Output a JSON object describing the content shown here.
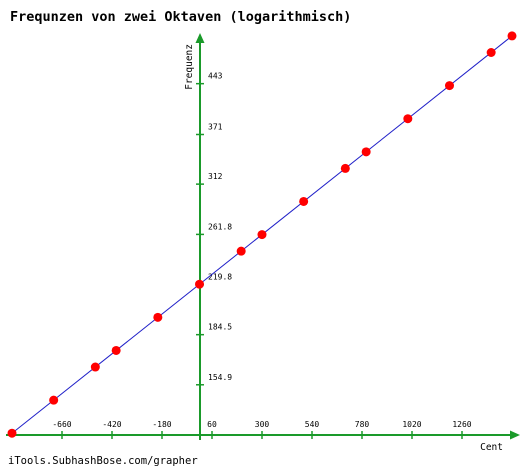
{
  "title": "Frequnzen von zwei Oktaven (logarithmisch)",
  "credit": "iTools.SubhashBose.com/grapher",
  "chart_data": {
    "type": "scatter",
    "title": "Frequnzen von zwei Oktaven (logarithmisch)",
    "xlabel": "Cent",
    "ylabel": "Frequenz",
    "x_tick_labels": [
      "-660",
      "-420",
      "-180",
      "60",
      "300",
      "540",
      "780",
      "1020",
      "1260"
    ],
    "y_tick_labels": [
      "154.9",
      "184.5",
      "219.8",
      "261.8",
      "312",
      "371",
      "443"
    ],
    "xlim": [
      -900,
      1500
    ],
    "ylim": [
      130,
      525
    ],
    "line": {
      "from": [
        -900,
        130.8
      ],
      "to": [
        1500,
        523.3
      ]
    },
    "points": [
      {
        "x": -900,
        "y": 130.8
      },
      {
        "x": -700,
        "y": 146.8
      },
      {
        "x": -500,
        "y": 164.8
      },
      {
        "x": -400,
        "y": 174.6
      },
      {
        "x": -200,
        "y": 196.0
      },
      {
        "x": 0,
        "y": 220.0
      },
      {
        "x": 200,
        "y": 246.9
      },
      {
        "x": 300,
        "y": 261.6
      },
      {
        "x": 500,
        "y": 293.7
      },
      {
        "x": 700,
        "y": 329.6
      },
      {
        "x": 800,
        "y": 349.2
      },
      {
        "x": 1000,
        "y": 392.0
      },
      {
        "x": 1200,
        "y": 440.0
      },
      {
        "x": 1400,
        "y": 493.9
      },
      {
        "x": 1500,
        "y": 523.3
      }
    ],
    "colors": {
      "axes": "#1a9a2a",
      "line": "#2020c8",
      "points": "#ff0000"
    },
    "grid": false
  }
}
